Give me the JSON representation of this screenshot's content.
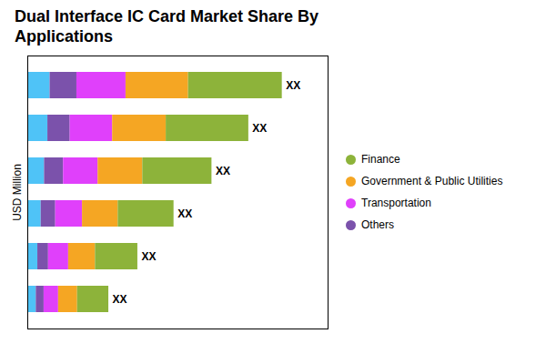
{
  "chart_data": {
    "type": "bar",
    "orientation": "horizontal",
    "stacked": true,
    "title": "Dual Interface IC Card Market Share By\nApplications",
    "ylabel": "USD Million",
    "categories": [
      null,
      null,
      null,
      null,
      null,
      null
    ],
    "series": [
      {
        "name": null,
        "color": "#4FC3F7",
        "values": [
          1.0,
          0.9,
          0.75,
          0.6,
          0.45,
          0.38
        ]
      },
      {
        "name": "Others",
        "color": "#7B52AB",
        "values": [
          1.2,
          1.0,
          0.85,
          0.65,
          0.48,
          0.35
        ]
      },
      {
        "name": "Transportation",
        "color": "#E040FB",
        "values": [
          2.2,
          1.9,
          1.55,
          1.2,
          0.9,
          0.65
        ]
      },
      {
        "name": "Government & Public Utilities",
        "color": "#F5A623",
        "values": [
          2.8,
          2.4,
          2.0,
          1.6,
          1.2,
          0.85
        ]
      },
      {
        "name": "Finance",
        "color": "#8DB33A",
        "values": [
          4.2,
          3.7,
          3.1,
          2.5,
          1.9,
          1.4
        ]
      }
    ],
    "total_labels": [
      "XX",
      "XX",
      "XX",
      "XX",
      "XX",
      "XX"
    ],
    "xlim": [
      0,
      13.452
    ],
    "xticks": [],
    "tick_labels": false,
    "grid": false,
    "legend": "right"
  }
}
